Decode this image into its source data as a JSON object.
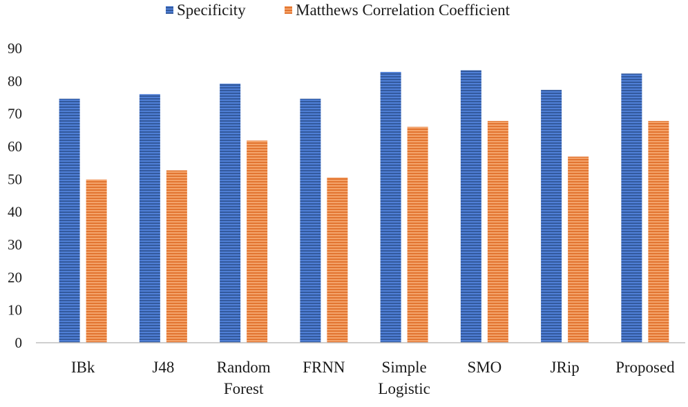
{
  "chart_data": {
    "type": "bar",
    "title": "",
    "xlabel": "",
    "ylabel": "",
    "ylim": [
      0,
      90
    ],
    "yticks": [
      0,
      10,
      20,
      30,
      40,
      50,
      60,
      70,
      80,
      90
    ],
    "grid": false,
    "legend_position": "top-center",
    "categories": [
      [
        "IBk"
      ],
      [
        "J48"
      ],
      [
        "Random",
        "Forest"
      ],
      [
        "FRNN"
      ],
      [
        "Simple",
        "Logistic"
      ],
      [
        "SMO"
      ],
      [
        "JRip"
      ],
      [
        "Proposed"
      ]
    ],
    "series": [
      {
        "name": "Specificity",
        "color": "#4472C4",
        "values": [
          74.6,
          76.0,
          79.2,
          74.6,
          82.8,
          83.3,
          77.3,
          82.3
        ]
      },
      {
        "name": "Matthews Correlation Coefficient",
        "color": "#ED7D31",
        "values": [
          49.9,
          52.7,
          61.8,
          50.5,
          66.0,
          67.8,
          56.9,
          67.8
        ]
      }
    ]
  }
}
